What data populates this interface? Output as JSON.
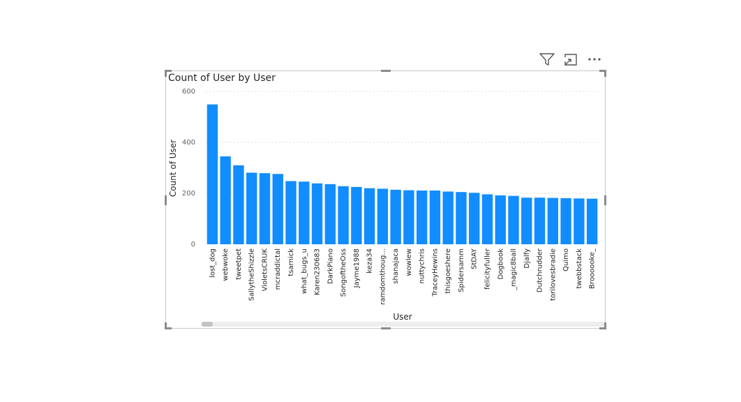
{
  "toolbar": {
    "filter_icon": "filter-icon",
    "focus_icon": "focus-mode-icon",
    "more_icon": "more-options-icon"
  },
  "colors": {
    "bar": "#118DFF",
    "gridline": "#e1dfdd",
    "border": "#c8c8c8",
    "scrollbar": "#ededed",
    "scroll_thumb": "#c2c2c2"
  },
  "chart_data": {
    "type": "bar",
    "title": "Count of User by User",
    "xlabel": "User",
    "ylabel": "Count of User",
    "ylim": [
      0,
      600
    ],
    "yticks": [
      0,
      200,
      400,
      600
    ],
    "grid": true,
    "categories": [
      "lost_dog",
      "webwoke",
      "tweetpet",
      "SallytheShizzle",
      "VioletsCRUK",
      "mcraddictal",
      "tsarnick",
      "what_bugs_u",
      "Karen230683",
      "DarkPiano",
      "SongoftheOss",
      "Jayme1988",
      "keza34",
      "ramdomthoug...",
      "shanajaca",
      "wowlew",
      "nuttychris",
      "TraceyHewins",
      "thisgoeshere",
      "Spidersamm",
      "StDAY",
      "felicityfuller",
      "Dogbook",
      "_magic8ball",
      "Djalfy",
      "Dutchrudder",
      "torilovesbradie",
      "Quimo",
      "twebbstack",
      "Broooooke_"
    ],
    "values": [
      549,
      345,
      310,
      281,
      279,
      276,
      248,
      246,
      239,
      236,
      228,
      225,
      220,
      218,
      214,
      212,
      211,
      211,
      207,
      205,
      202,
      196,
      192,
      190,
      183,
      183,
      182,
      181,
      180,
      179
    ]
  }
}
